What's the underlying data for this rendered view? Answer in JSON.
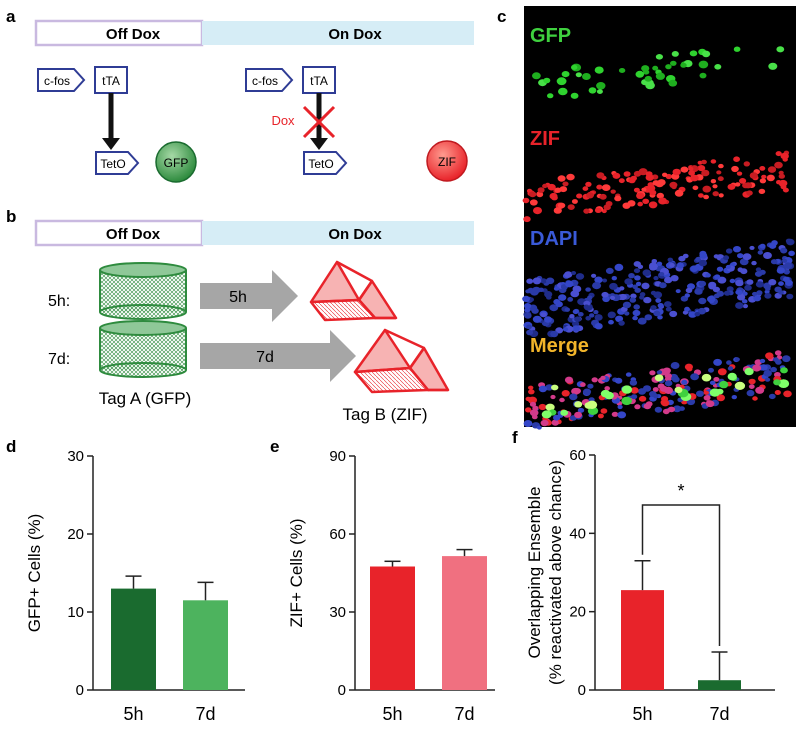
{
  "panel_labels": {
    "a": "a",
    "b": "b",
    "c": "c",
    "d": "d",
    "e": "e",
    "f": "f"
  },
  "schematic_a": {
    "off_dox": "Off Dox",
    "on_dox": "On Dox",
    "cfos": "c-fos",
    "tta": "tTA",
    "teto": "TetO",
    "gfp": "GFP",
    "dox": "Dox",
    "zif": "ZIF"
  },
  "schematic_b": {
    "off_dox": "Off Dox",
    "on_dox": "On Dox",
    "row_5h": "5h:",
    "row_7d": "7d:",
    "arrow_5h": "5h",
    "arrow_7d": "7d",
    "tag_a": "Tag A (GFP)",
    "tag_b": "Tag B (ZIF)"
  },
  "micrograph_c": {
    "gfp": "GFP",
    "zif": "ZIF",
    "dapi": "DAPI",
    "merge": "Merge"
  },
  "colors": {
    "dark_green": "#1a6b2f",
    "light_green": "#4db35e",
    "red": "#e8232a",
    "pink": "#f07080",
    "off_dox_border": "#c9b9e0",
    "on_dox_fill": "#d6edf6",
    "blue_outline": "#2f3c95"
  },
  "chart_data": [
    {
      "type": "bar",
      "panel": "d",
      "categories": [
        "5h",
        "7d"
      ],
      "values": [
        13,
        11.5
      ],
      "errors": [
        1.6,
        2.3
      ],
      "colors": [
        "#1a6b2f",
        "#4db35e"
      ],
      "ylabel": "GFP+ Cells (%)",
      "yticks": [
        0,
        10,
        20,
        30
      ],
      "ylim": [
        0,
        30
      ]
    },
    {
      "type": "bar",
      "panel": "e",
      "categories": [
        "5h",
        "7d"
      ],
      "values": [
        47.5,
        51.5
      ],
      "errors": [
        2.0,
        2.5
      ],
      "colors": [
        "#e8232a",
        "#f07080"
      ],
      "ylabel": "ZIF+ Cells (%)",
      "yticks": [
        0,
        30,
        60,
        90
      ],
      "ylim": [
        0,
        90
      ]
    },
    {
      "type": "bar",
      "panel": "f",
      "categories": [
        "5h",
        "7d"
      ],
      "values": [
        25.5,
        2.5
      ],
      "errors": [
        7.5,
        7.2
      ],
      "colors": [
        "#e8232a",
        "#1a6b2f"
      ],
      "ylabel_line1": "Overlapping Ensemble",
      "ylabel_line2": "(% reactivated above chance)",
      "yticks": [
        0,
        20,
        40,
        60
      ],
      "ylim": [
        0,
        60
      ],
      "significance": "*"
    }
  ]
}
